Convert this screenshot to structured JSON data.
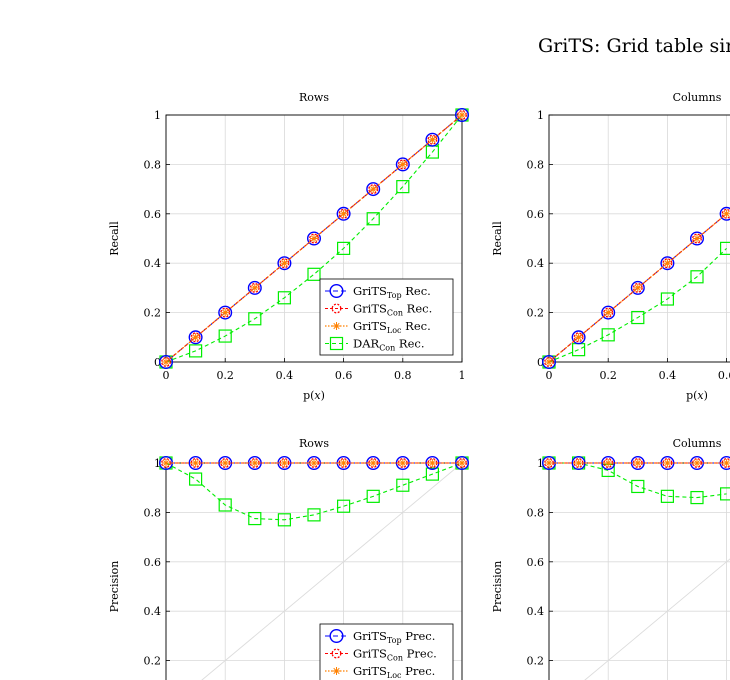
{
  "title": "GriTS: Grid table sim",
  "colors": {
    "top": "#0000ff",
    "con": "#ff0000",
    "loc": "#ff8000",
    "dar": "#00ee00",
    "grid": "#d9d9d9",
    "diag": "#dcdcdc"
  },
  "chart_data": [
    {
      "type": "line",
      "title": "Rows",
      "xlabel": "p(x)",
      "ylabel": "Recall",
      "xlim": [
        0,
        1
      ],
      "ylim": [
        0,
        1
      ],
      "xticks": [
        "0",
        "0.2",
        "0.4",
        "0.6",
        "0.8",
        "1"
      ],
      "yticks": [
        "0",
        "0.2",
        "0.4",
        "0.6",
        "0.8",
        "1"
      ],
      "legend_position": "bottom-right",
      "x": [
        0,
        0.1,
        0.2,
        0.3,
        0.4,
        0.5,
        0.6,
        0.7,
        0.8,
        0.9,
        1.0
      ],
      "series": [
        {
          "name": "GriTS",
          "sub": "Top",
          "suffix": " Rec.",
          "style": "top",
          "values": [
            0,
            0.1,
            0.2,
            0.3,
            0.4,
            0.5,
            0.6,
            0.7,
            0.8,
            0.9,
            1.0
          ]
        },
        {
          "name": "GriTS",
          "sub": "Con",
          "suffix": " Rec.",
          "style": "con",
          "values": [
            0,
            0.1,
            0.2,
            0.3,
            0.4,
            0.5,
            0.6,
            0.7,
            0.8,
            0.9,
            1.0
          ]
        },
        {
          "name": "GriTS",
          "sub": "Loc",
          "suffix": " Rec.",
          "style": "loc",
          "values": [
            0,
            0.1,
            0.2,
            0.3,
            0.4,
            0.5,
            0.6,
            0.7,
            0.8,
            0.9,
            1.0
          ]
        },
        {
          "name": "DAR",
          "sub": "Con",
          "suffix": " Rec.",
          "style": "dar",
          "values": [
            0,
            0.045,
            0.105,
            0.175,
            0.26,
            0.355,
            0.46,
            0.58,
            0.71,
            0.85,
            1.0
          ]
        }
      ]
    },
    {
      "type": "line",
      "title": "Columns",
      "xlabel": "p(x)",
      "ylabel": "Recall",
      "xlim": [
        0,
        1
      ],
      "ylim": [
        0,
        1
      ],
      "xticks": [
        "0",
        "0.2",
        "0.4",
        "0.6"
      ],
      "yticks": [
        "0",
        "0.2",
        "0.4",
        "0.6",
        "0.8",
        "1"
      ],
      "legend_position": "bottom-right",
      "x": [
        0,
        0.1,
        0.2,
        0.3,
        0.4,
        0.5,
        0.6
      ],
      "series": [
        {
          "style": "top",
          "values": [
            0,
            0.1,
            0.2,
            0.3,
            0.4,
            0.5,
            0.6
          ]
        },
        {
          "style": "con",
          "values": [
            0,
            0.1,
            0.2,
            0.3,
            0.4,
            0.5,
            0.6
          ]
        },
        {
          "style": "loc",
          "values": [
            0,
            0.1,
            0.2,
            0.3,
            0.4,
            0.5,
            0.6
          ]
        },
        {
          "style": "dar",
          "values": [
            0,
            0.05,
            0.11,
            0.18,
            0.255,
            0.345,
            0.46
          ]
        }
      ]
    },
    {
      "type": "line",
      "title": "Rows",
      "ylabel": "Precision",
      "xlim": [
        0,
        1
      ],
      "ylim": [
        0,
        1
      ],
      "yticks": [
        "0.2",
        "0.4",
        "0.6",
        "0.8",
        "1"
      ],
      "legend_position": "bottom-right",
      "x": [
        0,
        0.1,
        0.2,
        0.3,
        0.4,
        0.5,
        0.6,
        0.7,
        0.8,
        0.9,
        1.0
      ],
      "series": [
        {
          "name": "GriTS",
          "sub": "Top",
          "suffix": " Prec.",
          "style": "top",
          "values": [
            1,
            1,
            1,
            1,
            1,
            1,
            1,
            1,
            1,
            1,
            1
          ]
        },
        {
          "name": "GriTS",
          "sub": "Con",
          "suffix": " Prec.",
          "style": "con",
          "values": [
            1,
            1,
            1,
            1,
            1,
            1,
            1,
            1,
            1,
            1,
            1
          ]
        },
        {
          "name": "GriTS",
          "sub": "Loc",
          "suffix": " Prec.",
          "style": "loc",
          "values": [
            1,
            1,
            1,
            1,
            1,
            1,
            1,
            1,
            1,
            1,
            1
          ]
        },
        {
          "style": "dar",
          "values": [
            1,
            0.935,
            0.83,
            0.775,
            0.77,
            0.79,
            0.825,
            0.865,
            0.91,
            0.955,
            1.0
          ]
        }
      ]
    },
    {
      "type": "line",
      "title": "Columns",
      "ylabel": "Precision",
      "xlim": [
        0,
        1
      ],
      "ylim": [
        0,
        1
      ],
      "yticks": [
        "0.2",
        "0.4",
        "0.6",
        "0.8",
        "1"
      ],
      "legend_position": "bottom-right",
      "x": [
        0,
        0.1,
        0.2,
        0.3,
        0.4,
        0.5,
        0.6
      ],
      "series": [
        {
          "style": "top",
          "values": [
            1,
            1,
            1,
            1,
            1,
            1,
            1
          ]
        },
        {
          "style": "con",
          "values": [
            1,
            1,
            1,
            1,
            1,
            1,
            1
          ]
        },
        {
          "style": "loc",
          "values": [
            1,
            1,
            1,
            1,
            1,
            1,
            1
          ]
        },
        {
          "style": "dar",
          "values": [
            1,
            1,
            0.97,
            0.905,
            0.865,
            0.86,
            0.875
          ]
        }
      ]
    }
  ]
}
